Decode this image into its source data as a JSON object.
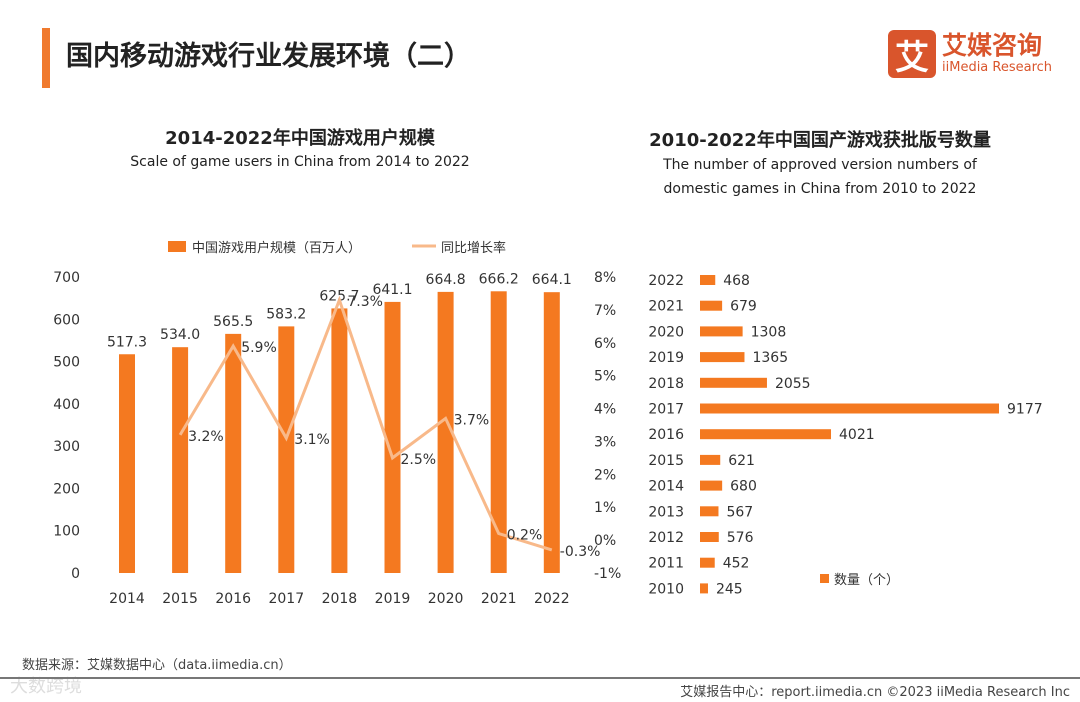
{
  "header": {
    "title": "国内移动游戏行业发展环境（二）",
    "logo_mark": "艾",
    "logo_cn": "艾媒咨询",
    "logo_en": "iiMedia Research"
  },
  "chart_data": [
    {
      "type": "bar",
      "title": "2014-2022年中国游戏用户规模",
      "subtitle": "Scale of game users in China from 2014 to 2022",
      "categories": [
        "2014",
        "2015",
        "2016",
        "2017",
        "2018",
        "2019",
        "2020",
        "2021",
        "2022"
      ],
      "series": [
        {
          "name": "中国游戏用户规模（百万人）",
          "type": "bar",
          "axis": "left",
          "values": [
            517.3,
            534.0,
            565.5,
            583.2,
            625.7,
            641.1,
            664.8,
            666.2,
            664.1
          ],
          "labels": [
            "517.3",
            "534.0",
            "565.5",
            "583.2",
            "625.7",
            "641.1",
            "664.8",
            "666.2",
            "664.1"
          ]
        },
        {
          "name": "同比增长率",
          "type": "line",
          "axis": "right",
          "values": [
            null,
            3.2,
            5.9,
            3.1,
            7.3,
            2.5,
            3.7,
            0.2,
            -0.3
          ],
          "labels": [
            "",
            "3.2%",
            "5.9%",
            "3.1%",
            "7.3%",
            "2.5%",
            "3.7%",
            "0.2%",
            "-0.3%"
          ]
        }
      ],
      "ylim": [
        0,
        700
      ],
      "yticks": [
        "0",
        "100",
        "200",
        "300",
        "400",
        "500",
        "600",
        "700"
      ],
      "y2lim": [
        -1,
        8
      ],
      "y2ticks": [
        "-1%",
        "0%",
        "1%",
        "2%",
        "3%",
        "4%",
        "5%",
        "6%",
        "7%",
        "8%"
      ],
      "legend": "top",
      "colors": {
        "bar": "#f47920",
        "line": "#f8b98a"
      }
    },
    {
      "type": "bar",
      "orientation": "horizontal",
      "title": "2010-2022年中国国产游戏获批版号数量",
      "subtitle": [
        "The number of approved version numbers of",
        "domestic games in China from 2010 to 2022"
      ],
      "categories": [
        "2022",
        "2021",
        "2020",
        "2019",
        "2018",
        "2017",
        "2016",
        "2015",
        "2014",
        "2013",
        "2012",
        "2011",
        "2010"
      ],
      "values": [
        468,
        679,
        1308,
        1365,
        2055,
        9177,
        4021,
        621,
        680,
        567,
        576,
        452,
        245
      ],
      "legend": "数量（个）",
      "colors": {
        "bar": "#f47920"
      }
    }
  ],
  "footer": {
    "source": "数据来源：艾媒数据中心（data.iimedia.cn）",
    "watermark": "大数跨境",
    "report": "艾媒报告中心：report.iimedia.cn  ©2023  iiMedia Research  Inc"
  }
}
